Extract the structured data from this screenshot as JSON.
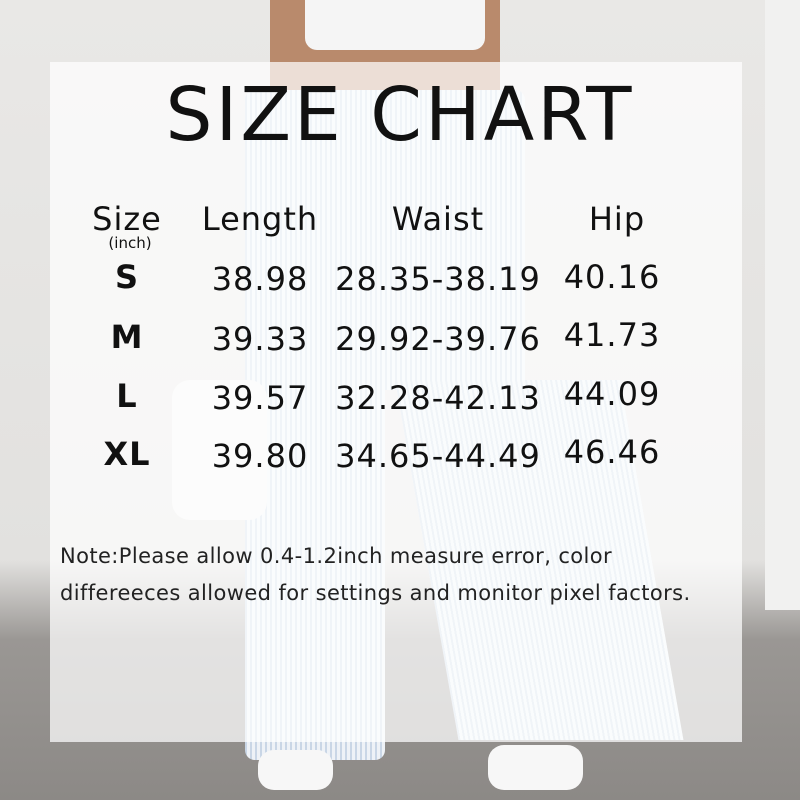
{
  "title": "SIZE CHART",
  "table": {
    "headers": [
      "Size",
      "Length",
      "Waist",
      "Hip"
    ],
    "size_unit": "(inch)",
    "rows": [
      [
        "S",
        "38.98",
        "28.35-38.19",
        "40.16"
      ],
      [
        "M",
        "39.33",
        "29.92-39.76",
        "41.73"
      ],
      [
        "L",
        "39.57",
        "32.28-42.13",
        "44.09"
      ],
      [
        "XL",
        "39.80",
        "34.65-44.49",
        "46.46"
      ]
    ]
  },
  "note": {
    "line1": "Note:Please allow 0.4-1.2inch measure error, color",
    "line2": "differeeces allowed for settings and monitor pixel factors."
  }
}
